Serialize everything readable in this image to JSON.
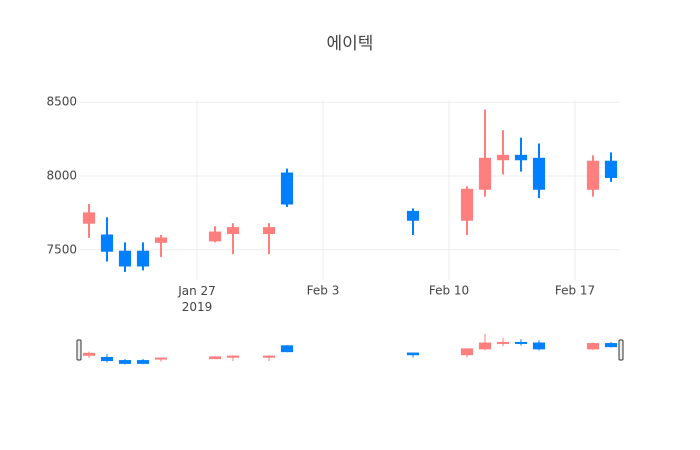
{
  "chart_data": {
    "type": "candlestick",
    "title": "에이텍",
    "x": [
      "2019-01-21",
      "2019-01-22",
      "2019-01-23",
      "2019-01-24",
      "2019-01-25",
      "2019-01-28",
      "2019-01-29",
      "2019-01-31",
      "2019-02-01",
      "2019-02-08",
      "2019-02-11",
      "2019-02-12",
      "2019-02-13",
      "2019-02-14",
      "2019-02-15",
      "2019-02-18",
      "2019-02-19"
    ],
    "open": [
      7680,
      7600,
      7490,
      7490,
      7550,
      7560,
      7610,
      7610,
      8020,
      7760,
      7700,
      7910,
      8110,
      8140,
      8120,
      7910,
      8100
    ],
    "high": [
      7810,
      7720,
      7550,
      7550,
      7600,
      7660,
      7680,
      7680,
      8050,
      7780,
      7930,
      8450,
      8310,
      8260,
      8220,
      8140,
      8160
    ],
    "low": [
      7580,
      7420,
      7350,
      7360,
      7450,
      7550,
      7470,
      7470,
      7790,
      7600,
      7600,
      7860,
      8010,
      8030,
      7850,
      7860,
      7960
    ],
    "close": [
      7750,
      7490,
      7390,
      7390,
      7580,
      7620,
      7650,
      7650,
      7810,
      7700,
      7910,
      8120,
      8140,
      8110,
      7910,
      8100,
      7990
    ],
    "increasing_color": "#ff7f7f",
    "decreasing_color": "#0080ff",
    "xlim": [
      "2019-01-20T12:00:00Z",
      "2019-02-19T12:00:00Z"
    ],
    "xticks": [
      {
        "value": "2019-01-27",
        "label": "Jan 27\n2019"
      },
      {
        "value": "2019-02-03",
        "label": "Feb 3"
      },
      {
        "value": "2019-02-10",
        "label": "Feb 10"
      },
      {
        "value": "2019-02-17",
        "label": "Feb 17"
      }
    ],
    "ylim": [
      7295,
      8515
    ],
    "yticks": [
      7500,
      8000,
      8500
    ],
    "grid": true,
    "rangeslider": true
  }
}
